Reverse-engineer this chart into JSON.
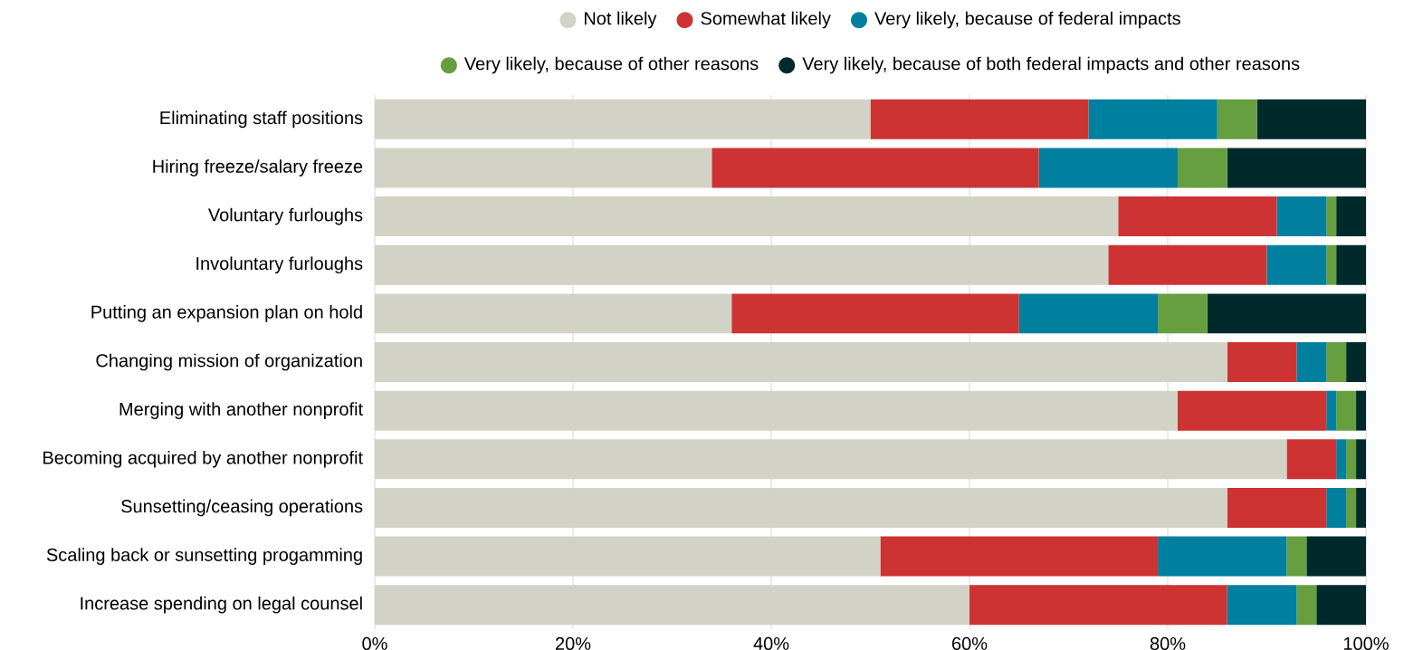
{
  "chart_data": {
    "type": "bar",
    "orientation": "horizontal",
    "stacked": true,
    "categories": [
      "Eliminating staff positions",
      "Hiring freeze/salary freeze",
      "Voluntary furloughs",
      "Involuntary furloughs",
      "Putting an expansion plan on hold",
      "Changing mission of organization",
      "Merging with another nonprofit",
      "Becoming acquired by another nonprofit",
      "Sunsetting/ceasing operations",
      "Scaling back or sunsetting progamming",
      "Increase spending on legal counsel"
    ],
    "series": [
      {
        "name": "Not likely",
        "color": "#d2d3c6",
        "values": [
          50,
          34,
          75,
          74,
          36,
          86,
          81,
          92,
          86,
          51,
          60
        ]
      },
      {
        "name": "Somewhat likely",
        "color": "#cd3333",
        "values": [
          22,
          33,
          16,
          16,
          29,
          7,
          15,
          5,
          10,
          28,
          26
        ]
      },
      {
        "name": "Very likely, because of federal impacts",
        "color": "#007f9f",
        "values": [
          13,
          14,
          5,
          6,
          14,
          3,
          1,
          1,
          2,
          13,
          7
        ]
      },
      {
        "name": "Very likely, because of other reasons",
        "color": "#669e40",
        "values": [
          4,
          5,
          1,
          1,
          5,
          2,
          2,
          1,
          1,
          2,
          2
        ]
      },
      {
        "name": "Very likely, because of both federal impacts and other reasons",
        "color": "#00292b",
        "values": [
          11,
          14,
          3,
          3,
          16,
          2,
          1,
          1,
          1,
          6,
          5
        ]
      }
    ],
    "xlim": [
      0,
      100
    ],
    "xticks": [
      {
        "value": 0,
        "label": "0%"
      },
      {
        "value": 20,
        "label": "20%"
      },
      {
        "value": 40,
        "label": "40%"
      },
      {
        "value": 60,
        "label": "60%"
      },
      {
        "value": 80,
        "label": "80%"
      },
      {
        "value": 100,
        "label": "100%"
      }
    ],
    "grid": "x",
    "legend": "top"
  }
}
